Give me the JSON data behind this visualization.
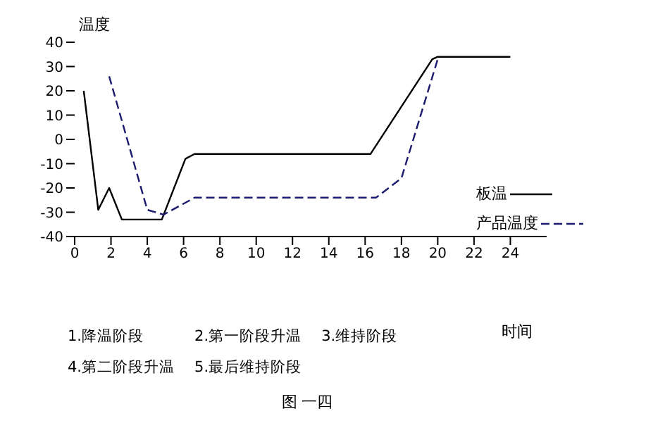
{
  "chart_data": {
    "type": "line",
    "title": "图 一四",
    "xlabel": "时间",
    "ylabel": "温度",
    "xlim": [
      0,
      26
    ],
    "xticks": [
      0,
      2,
      4,
      6,
      8,
      10,
      12,
      14,
      16,
      18,
      20,
      22,
      24
    ],
    "ylim": [
      -40,
      40
    ],
    "yticks": [
      -40,
      -30,
      -20,
      -10,
      0,
      10,
      20,
      30,
      40
    ],
    "grid": false,
    "legend": "bottom right",
    "marker": "none",
    "series": [
      {
        "name": "板温",
        "color": "#000000",
        "line_style": "solid",
        "x": [
          0.5,
          1.3,
          1.9,
          2.6,
          4.8,
          6.1,
          6.6,
          16.3,
          19.7,
          20,
          24
        ],
        "values": [
          20,
          -29,
          -20,
          -33,
          -33,
          -8,
          -6,
          -6,
          33,
          34,
          34
        ]
      },
      {
        "name": "产品温度",
        "color": "#1a1a6e",
        "line_style": "dashed",
        "x": [
          1.9,
          4,
          4.9,
          6.6,
          16.6,
          18,
          20
        ],
        "values": [
          26,
          -29,
          -31,
          -24,
          -24,
          -16,
          33
        ]
      }
    ],
    "annotations": [
      "1.降温阶段",
      "2.第一阶段升温",
      "3.维持阶段",
      "4.第二阶段升温",
      "5.最后维持阶段"
    ]
  }
}
